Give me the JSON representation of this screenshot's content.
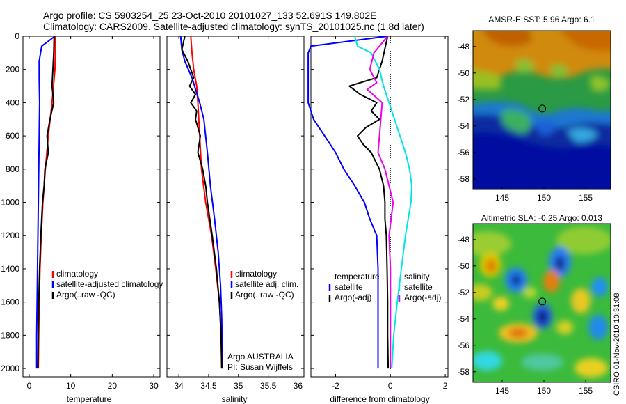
{
  "title": {
    "line1": "Argo profile: CS 5903254_25 23-Oct-2010 20101027_133 52.691S 149.802E",
    "line2": "Climatology: CARS2009. Satellite-adjusted climatology: synTS_20101025.nc (1.8d later)"
  },
  "side_label": "CSIRO 01-Nov-2010 10:31:08",
  "chart_data": [
    {
      "type": "line",
      "name": "temperature",
      "xlabel": "temperature",
      "ylabel": "",
      "xlim": [
        -1.5,
        31.5
      ],
      "ylim": [
        0,
        2050
      ],
      "xticks": [
        0,
        10,
        20,
        30
      ],
      "yticks": [
        0,
        200,
        400,
        600,
        800,
        1000,
        1200,
        1400,
        1600,
        1800,
        2000
      ],
      "legend": [
        {
          "label": "climatology",
          "color": "#ff0000"
        },
        {
          "label": "satellite-adjusted climatology",
          "color": "#0000ff"
        },
        {
          "label": "Argo(..raw -QC)",
          "color": "#000000"
        }
      ],
      "series": [
        {
          "name": "climatology",
          "color": "#ff0000",
          "depth": [
            0,
            200,
            400,
            600,
            800,
            1000,
            1200,
            1400,
            1600,
            1800,
            2000
          ],
          "values": [
            6.3,
            6.2,
            5.5,
            4.6,
            3.9,
            3.3,
            2.9,
            2.6,
            2.4,
            2.3,
            2.2
          ]
        },
        {
          "name": "satellite-adjusted climatology",
          "color": "#0000ff",
          "depth": [
            0,
            60,
            150,
            250,
            400,
            600,
            800,
            1000,
            1200,
            1400,
            1600,
            1800,
            2000
          ],
          "values": [
            6.2,
            3.0,
            2.4,
            2.4,
            2.5,
            2.4,
            2.3,
            2.2,
            2.1,
            2.0,
            1.9,
            1.8,
            1.8
          ]
        },
        {
          "name": "Argo(..raw -QC)",
          "color": "#000000",
          "depth": [
            0,
            100,
            200,
            300,
            400,
            500,
            600,
            700,
            800,
            900,
            1000,
            1200,
            1400,
            1600,
            1800,
            2000
          ],
          "values": [
            6.0,
            5.9,
            5.7,
            5.5,
            5.9,
            5.0,
            4.3,
            4.6,
            3.8,
            3.6,
            3.2,
            2.8,
            2.5,
            2.3,
            2.2,
            2.1
          ]
        }
      ]
    },
    {
      "type": "line",
      "name": "salinity",
      "xlabel": "salinity",
      "ylabel": "",
      "xlim": [
        33.8,
        36.1
      ],
      "ylim": [
        0,
        2050
      ],
      "xticks": [
        34,
        34.5,
        35,
        35.5,
        36
      ],
      "legend": [
        {
          "label": "climatology",
          "color": "#ff0000"
        },
        {
          "label": "satellite adj. clim.",
          "color": "#0000ff"
        },
        {
          "label": "Argo(..raw -QC)",
          "color": "#000000"
        }
      ],
      "annotation": [
        "Argo AUSTRALIA",
        "PI: Susan Wijffels"
      ],
      "series": [
        {
          "name": "climatology",
          "color": "#ff0000",
          "depth": [
            0,
            100,
            200,
            300,
            400,
            600,
            800,
            1000,
            1200,
            1400,
            1600,
            1800,
            2000
          ],
          "values": [
            34.2,
            34.22,
            34.25,
            34.3,
            34.32,
            34.35,
            34.38,
            34.45,
            34.55,
            34.62,
            34.68,
            34.71,
            34.72
          ]
        },
        {
          "name": "satellite adj. clim.",
          "color": "#0000ff",
          "depth": [
            0,
            80,
            150,
            250,
            400,
            500,
            700,
            900,
            1100,
            1300,
            1500,
            1700,
            1900,
            2000
          ],
          "values": [
            34.03,
            34.05,
            34.1,
            34.22,
            34.35,
            34.42,
            34.48,
            34.53,
            34.6,
            34.66,
            34.7,
            34.72,
            34.73,
            34.73
          ]
        },
        {
          "name": "Argo(..raw -QC)",
          "color": "#000000",
          "depth": [
            0,
            80,
            150,
            250,
            300,
            350,
            400,
            450,
            500,
            600,
            700,
            800,
            900,
            1000,
            1200,
            1400,
            1600,
            1800,
            2000
          ],
          "values": [
            34.1,
            34.05,
            34.15,
            34.25,
            34.18,
            34.28,
            34.2,
            34.3,
            34.28,
            34.36,
            34.32,
            34.4,
            34.45,
            34.48,
            34.56,
            34.63,
            34.68,
            34.71,
            34.72
          ]
        }
      ]
    },
    {
      "type": "line",
      "name": "difference",
      "xlabel": "difference from climatology",
      "ylabel": "",
      "xlim": [
        -2.9,
        2.1
      ],
      "ylim": [
        0,
        2050
      ],
      "xticks": [
        -2,
        0,
        2
      ],
      "zero_line": true,
      "legend_left_title": "temperature",
      "legend_right_title": "salinity",
      "legend": [
        {
          "label": "satellite",
          "color": "#0000ff",
          "column": "left"
        },
        {
          "label": "Argo(-adj)",
          "color": "#000000",
          "column": "left"
        },
        {
          "label": "satellite",
          "color": "#00e5e5",
          "column": "right"
        },
        {
          "label": "Argo(-adj)",
          "color": "#ee00ee",
          "column": "right"
        }
      ],
      "series": [
        {
          "name": "temperature satellite",
          "color": "#0000ff",
          "depth": [
            0,
            60,
            100,
            150,
            200,
            300,
            400,
            500,
            600,
            700,
            800,
            900,
            1000,
            1100,
            1200,
            1400,
            1600,
            1800,
            2000
          ],
          "values": [
            -0.1,
            -2.9,
            -3.0,
            -3.0,
            -3.0,
            -3.0,
            -3.0,
            -2.8,
            -2.4,
            -2.0,
            -1.7,
            -1.3,
            -0.95,
            -0.75,
            -0.5,
            -0.45,
            -0.45,
            -0.45,
            -0.45
          ]
        },
        {
          "name": "temperature Argo(-adj)",
          "color": "#000000",
          "depth": [
            0,
            150,
            250,
            300,
            350,
            400,
            450,
            500,
            550,
            600,
            650,
            700,
            800,
            900,
            1000,
            1100,
            1200,
            1400,
            1600,
            1800,
            2000
          ],
          "values": [
            -0.1,
            -0.3,
            -0.5,
            -1.5,
            -1.1,
            -0.5,
            -0.7,
            -0.4,
            -0.9,
            -1.2,
            -1.0,
            -0.7,
            -0.4,
            -0.25,
            -0.2,
            -0.2,
            -0.15,
            -0.12,
            -0.1,
            -0.1,
            -0.08
          ]
        },
        {
          "name": "salinity satellite",
          "color": "#00e5e5",
          "depth": [
            0,
            60,
            100,
            200,
            300,
            400,
            500,
            600,
            700,
            800,
            900,
            1000,
            1200,
            1400,
            1600,
            1800,
            2000
          ],
          "values": [
            -1.3,
            -1.2,
            -0.7,
            -0.4,
            -0.25,
            -0.05,
            0.15,
            0.35,
            0.55,
            0.7,
            0.78,
            0.75,
            0.55,
            0.4,
            0.25,
            0.12,
            0.05
          ]
        },
        {
          "name": "salinity Argo(-adj)",
          "color": "#ee00ee",
          "depth": [
            0,
            100,
            200,
            280,
            320,
            400,
            500,
            600,
            700,
            800,
            1000,
            1200,
            1400,
            1600,
            1800,
            2000
          ],
          "values": [
            -0.1,
            -0.6,
            -0.75,
            -0.5,
            -0.85,
            -0.3,
            -0.35,
            -0.4,
            -0.45,
            -0.2,
            0.1,
            -0.05,
            0.0,
            0.0,
            0.0,
            0.0
          ]
        }
      ]
    },
    {
      "type": "heatmap",
      "name": "amsr-sst",
      "title": "AMSR-E SST: 5.96 Argo: 6.1",
      "xlim": [
        141.5,
        158
      ],
      "ylim": [
        -58.8,
        -46.8
      ],
      "xticks": [
        145,
        150,
        155
      ],
      "yticks": [
        -48,
        -50,
        -52,
        -54,
        -56,
        -58
      ],
      "marker": {
        "lon": 149.802,
        "lat": -52.691
      }
    },
    {
      "type": "heatmap",
      "name": "altimetric-sla",
      "title": "Altimetric SLA: -0.25 Argo: 0.013",
      "xlim": [
        141.5,
        158
      ],
      "ylim": [
        -58.8,
        -46.8
      ],
      "xticks": [
        145,
        150,
        155
      ],
      "yticks": [
        -48,
        -50,
        -52,
        -54,
        -56,
        -58
      ],
      "marker": {
        "lon": 149.802,
        "lat": -52.691
      }
    }
  ]
}
